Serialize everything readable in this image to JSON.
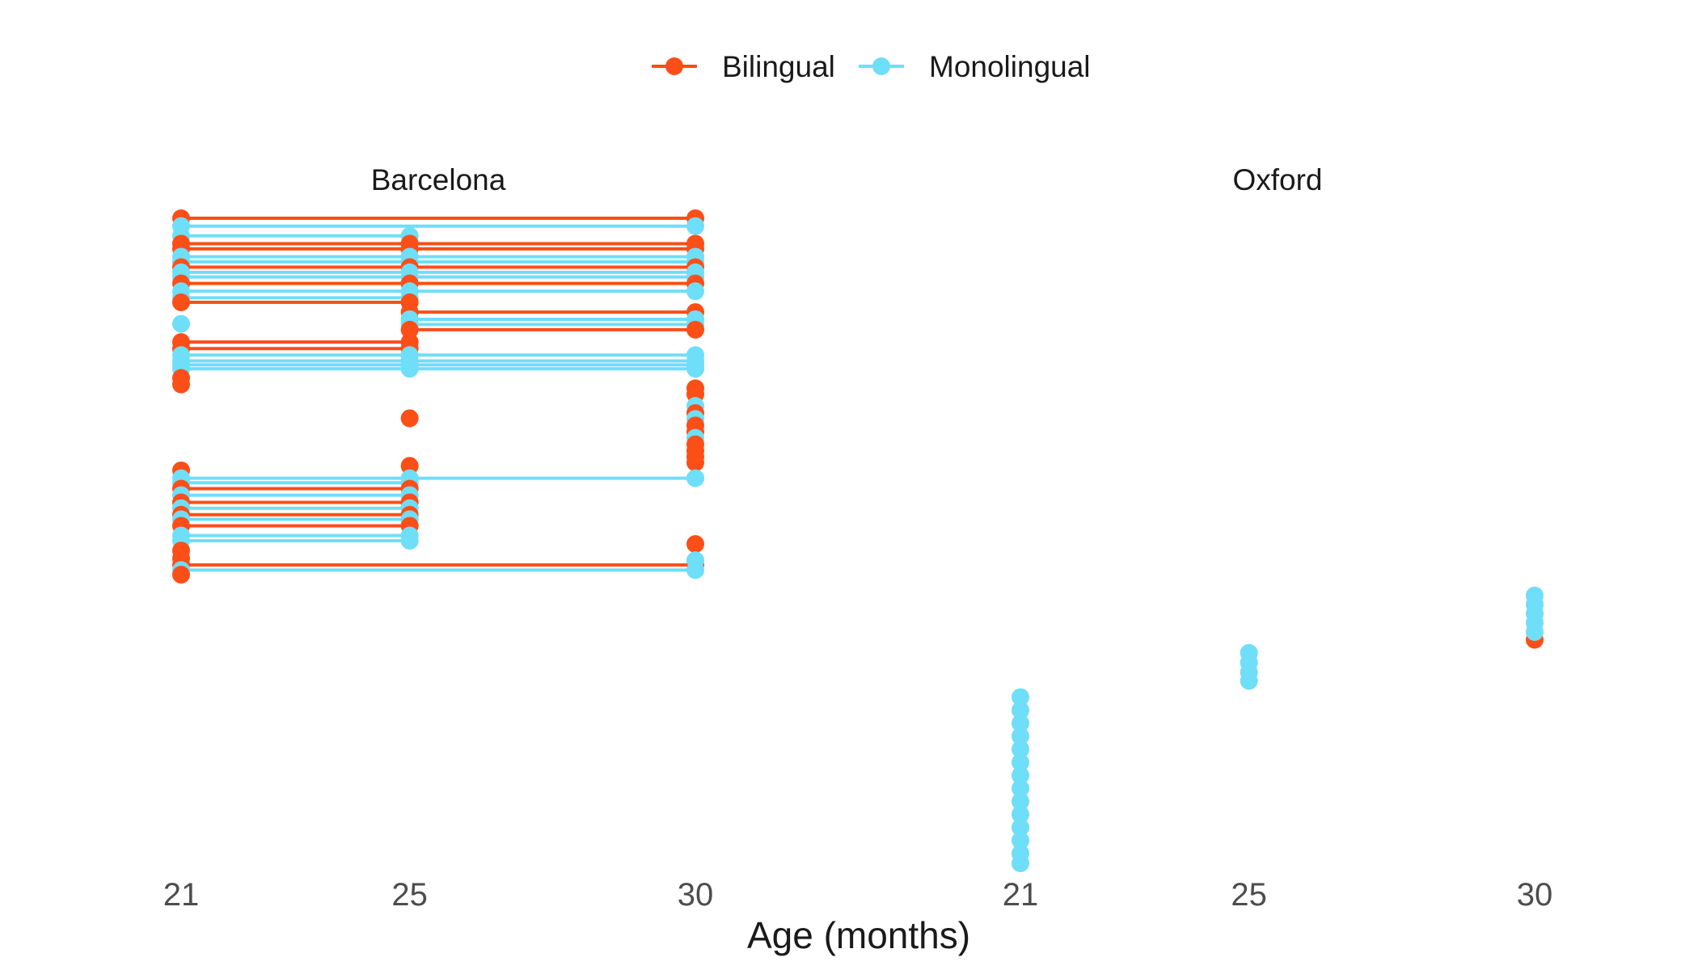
{
  "colors": {
    "Bilingual": "#FC4E17",
    "Monolingual": "#6FDEF8"
  },
  "chart_data": {
    "type": "line",
    "xlabel": "Age (months)",
    "ylabel": "",
    "x_ticks": [
      21,
      25,
      30
    ],
    "ylim": [
      0,
      100
    ],
    "legend": {
      "placement": "top",
      "entries": [
        "Bilingual",
        "Monolingual"
      ]
    },
    "grid": false,
    "panels": [
      {
        "name": "Barcelona",
        "series": [
          {
            "group": "Bilingual",
            "x": [
              21,
              30
            ],
            "y": [
              99.5,
              99.5
            ]
          },
          {
            "group": "Monolingual",
            "x": [
              21,
              30
            ],
            "y": [
              98.3,
              98.3
            ]
          },
          {
            "group": "Monolingual",
            "x": [
              21,
              25
            ],
            "y": [
              96.8,
              96.8
            ]
          },
          {
            "group": "Bilingual",
            "x": [
              21,
              25,
              30
            ],
            "y": [
              95.6,
              95.6,
              95.6
            ]
          },
          {
            "group": "Bilingual",
            "x": [
              21,
              25,
              30
            ],
            "y": [
              94.8,
              94.8,
              94.8
            ]
          },
          {
            "group": "Monolingual",
            "x": [
              21,
              25,
              30
            ],
            "y": [
              93.6,
              93.6,
              93.6
            ]
          },
          {
            "group": "Monolingual",
            "x": [
              21,
              25,
              30
            ],
            "y": [
              92.8,
              92.8,
              92.8
            ]
          },
          {
            "group": "Bilingual",
            "x": [
              21,
              25,
              30
            ],
            "y": [
              92.0,
              92.0,
              92.0
            ]
          },
          {
            "group": "Monolingual",
            "x": [
              21,
              25,
              30
            ],
            "y": [
              91.2,
              91.2,
              91.2
            ]
          },
          {
            "group": "Monolingual",
            "x": [
              21,
              25,
              30
            ],
            "y": [
              90.5,
              90.5,
              90.5
            ]
          },
          {
            "group": "Bilingual",
            "x": [
              21,
              25,
              30
            ],
            "y": [
              89.5,
              89.5,
              89.5
            ]
          },
          {
            "group": "Monolingual",
            "x": [
              21,
              25,
              30
            ],
            "y": [
              88.3,
              88.3,
              88.3
            ]
          },
          {
            "group": "Monolingual",
            "x": [
              21,
              25
            ],
            "y": [
              87.3,
              87.3
            ]
          },
          {
            "group": "Bilingual",
            "x": [
              21,
              25
            ],
            "y": [
              86.6,
              86.6
            ]
          },
          {
            "group": "Bilingual",
            "x": [
              25,
              30
            ],
            "y": [
              85.1,
              85.1
            ]
          },
          {
            "group": "Monolingual",
            "x": [
              25,
              30
            ],
            "y": [
              84.0,
              84.0
            ]
          },
          {
            "group": "Monolingual",
            "x": [
              25,
              30
            ],
            "y": [
              83.2,
              83.2
            ]
          },
          {
            "group": "Bilingual",
            "x": [
              25,
              30
            ],
            "y": [
              82.4,
              82.4
            ]
          },
          {
            "group": "Monolingual",
            "x": [
              21
            ],
            "y": [
              83.3
            ]
          },
          {
            "group": "Bilingual",
            "x": [
              21,
              25
            ],
            "y": [
              80.5,
              80.5
            ]
          },
          {
            "group": "Bilingual",
            "x": [
              21,
              25
            ],
            "y": [
              79.5,
              79.5
            ]
          },
          {
            "group": "Monolingual",
            "x": [
              21,
              25,
              30
            ],
            "y": [
              78.5,
              78.5,
              78.5
            ]
          },
          {
            "group": "Monolingual",
            "x": [
              21,
              25,
              30
            ],
            "y": [
              77.6,
              77.6,
              77.6
            ]
          },
          {
            "group": "Monolingual",
            "x": [
              21,
              25,
              30
            ],
            "y": [
              77.0,
              77.0,
              77.0
            ]
          },
          {
            "group": "Monolingual",
            "x": [
              21,
              25,
              30
            ],
            "y": [
              76.4,
              76.4,
              76.4
            ]
          },
          {
            "group": "Bilingual",
            "x": [
              21
            ],
            "y": [
              75.0
            ]
          },
          {
            "group": "Bilingual",
            "x": [
              21
            ],
            "y": [
              74.0
            ]
          },
          {
            "group": "Bilingual",
            "x": [
              25
            ],
            "y": [
              68.8
            ]
          },
          {
            "group": "Bilingual",
            "x": [
              30
            ],
            "y": [
              73.4
            ]
          },
          {
            "group": "Bilingual",
            "x": [
              30
            ],
            "y": [
              72.5
            ]
          },
          {
            "group": "Monolingual",
            "x": [
              30
            ],
            "y": [
              70.7
            ]
          },
          {
            "group": "Bilingual",
            "x": [
              30
            ],
            "y": [
              69.6
            ]
          },
          {
            "group": "Monolingual",
            "x": [
              30
            ],
            "y": [
              68.7
            ]
          },
          {
            "group": "Bilingual",
            "x": [
              30
            ],
            "y": [
              67.7
            ]
          },
          {
            "group": "Bilingual",
            "x": [
              30
            ],
            "y": [
              66.7
            ]
          },
          {
            "group": "Monolingual",
            "x": [
              30
            ],
            "y": [
              65.8
            ]
          },
          {
            "group": "Bilingual",
            "x": [
              30
            ],
            "y": [
              64.8
            ]
          },
          {
            "group": "Bilingual",
            "x": [
              30
            ],
            "y": [
              63.8
            ]
          },
          {
            "group": "Bilingual",
            "x": [
              30
            ],
            "y": [
              62.9
            ]
          },
          {
            "group": "Bilingual",
            "x": [
              30
            ],
            "y": [
              62.0
            ]
          },
          {
            "group": "Bilingual",
            "x": [
              21
            ],
            "y": [
              60.8
            ]
          },
          {
            "group": "Bilingual",
            "x": [
              25
            ],
            "y": [
              61.5
            ]
          },
          {
            "group": "Monolingual",
            "x": [
              21,
              25,
              30
            ],
            "y": [
              59.6,
              59.6,
              59.6
            ]
          },
          {
            "group": "Monolingual",
            "x": [
              21,
              25
            ],
            "y": [
              58.9,
              58.9
            ]
          },
          {
            "group": "Bilingual",
            "x": [
              21,
              25
            ],
            "y": [
              58.0,
              58.0
            ]
          },
          {
            "group": "Monolingual",
            "x": [
              21,
              25
            ],
            "y": [
              57.0,
              57.0
            ]
          },
          {
            "group": "Bilingual",
            "x": [
              21,
              25
            ],
            "y": [
              55.9,
              55.9
            ]
          },
          {
            "group": "Monolingual",
            "x": [
              21,
              25
            ],
            "y": [
              55.0,
              55.0
            ]
          },
          {
            "group": "Bilingual",
            "x": [
              21,
              25
            ],
            "y": [
              54.0,
              54.0
            ]
          },
          {
            "group": "Monolingual",
            "x": [
              21,
              25
            ],
            "y": [
              53.3,
              53.3
            ]
          },
          {
            "group": "Bilingual",
            "x": [
              21,
              25
            ],
            "y": [
              52.3,
              52.3
            ]
          },
          {
            "group": "Monolingual",
            "x": [
              21,
              25
            ],
            "y": [
              50.8,
              50.8
            ]
          },
          {
            "group": "Monolingual",
            "x": [
              21,
              25
            ],
            "y": [
              50.0,
              50.0
            ]
          },
          {
            "group": "Bilingual",
            "x": [
              21
            ],
            "y": [
              48.5
            ]
          },
          {
            "group": "Bilingual",
            "x": [
              21
            ],
            "y": [
              47.3
            ]
          },
          {
            "group": "Bilingual",
            "x": [
              30
            ],
            "y": [
              49.5
            ]
          },
          {
            "group": "Bilingual",
            "x": [
              21,
              30
            ],
            "y": [
              46.3,
              46.3
            ]
          },
          {
            "group": "Monolingual",
            "x": [
              21,
              30
            ],
            "y": [
              45.5,
              45.5
            ]
          },
          {
            "group": "Monolingual",
            "x": [
              30
            ],
            "y": [
              47.0
            ]
          },
          {
            "group": "Bilingual",
            "x": [
              21
            ],
            "y": [
              44.8
            ]
          }
        ]
      },
      {
        "name": "Oxford",
        "series": [
          {
            "group": "Monolingual",
            "x": [
              21
            ],
            "y": [
              26.0
            ]
          },
          {
            "group": "Monolingual",
            "x": [
              21
            ],
            "y": [
              24.0
            ]
          },
          {
            "group": "Monolingual",
            "x": [
              21
            ],
            "y": [
              22.0
            ]
          },
          {
            "group": "Monolingual",
            "x": [
              21
            ],
            "y": [
              20.0
            ]
          },
          {
            "group": "Monolingual",
            "x": [
              21
            ],
            "y": [
              18.0
            ]
          },
          {
            "group": "Monolingual",
            "x": [
              21
            ],
            "y": [
              16.0
            ]
          },
          {
            "group": "Monolingual",
            "x": [
              21
            ],
            "y": [
              14.0
            ]
          },
          {
            "group": "Monolingual",
            "x": [
              21
            ],
            "y": [
              12.0
            ]
          },
          {
            "group": "Monolingual",
            "x": [
              21
            ],
            "y": [
              10.0
            ]
          },
          {
            "group": "Monolingual",
            "x": [
              21
            ],
            "y": [
              8.0
            ]
          },
          {
            "group": "Monolingual",
            "x": [
              21
            ],
            "y": [
              6.0
            ]
          },
          {
            "group": "Monolingual",
            "x": [
              21
            ],
            "y": [
              4.0
            ]
          },
          {
            "group": "Monolingual",
            "x": [
              21
            ],
            "y": [
              2.0
            ]
          },
          {
            "group": "Monolingual",
            "x": [
              21
            ],
            "y": [
              0.5
            ]
          },
          {
            "group": "Monolingual",
            "x": [
              25
            ],
            "y": [
              32.8
            ]
          },
          {
            "group": "Monolingual",
            "x": [
              25
            ],
            "y": [
              31.3
            ]
          },
          {
            "group": "Monolingual",
            "x": [
              25
            ],
            "y": [
              29.8
            ]
          },
          {
            "group": "Monolingual",
            "x": [
              25
            ],
            "y": [
              28.5
            ]
          },
          {
            "group": "Bilingual",
            "x": [
              30
            ],
            "y": [
              34.8
            ]
          },
          {
            "group": "Monolingual",
            "x": [
              30
            ],
            "y": [
              36.0
            ]
          },
          {
            "group": "Monolingual",
            "x": [
              30
            ],
            "y": [
              37.4
            ]
          },
          {
            "group": "Monolingual",
            "x": [
              30
            ],
            "y": [
              38.8
            ]
          },
          {
            "group": "Monolingual",
            "x": [
              30
            ],
            "y": [
              40.2
            ]
          },
          {
            "group": "Monolingual",
            "x": [
              30
            ],
            "y": [
              41.6
            ]
          }
        ]
      }
    ]
  }
}
